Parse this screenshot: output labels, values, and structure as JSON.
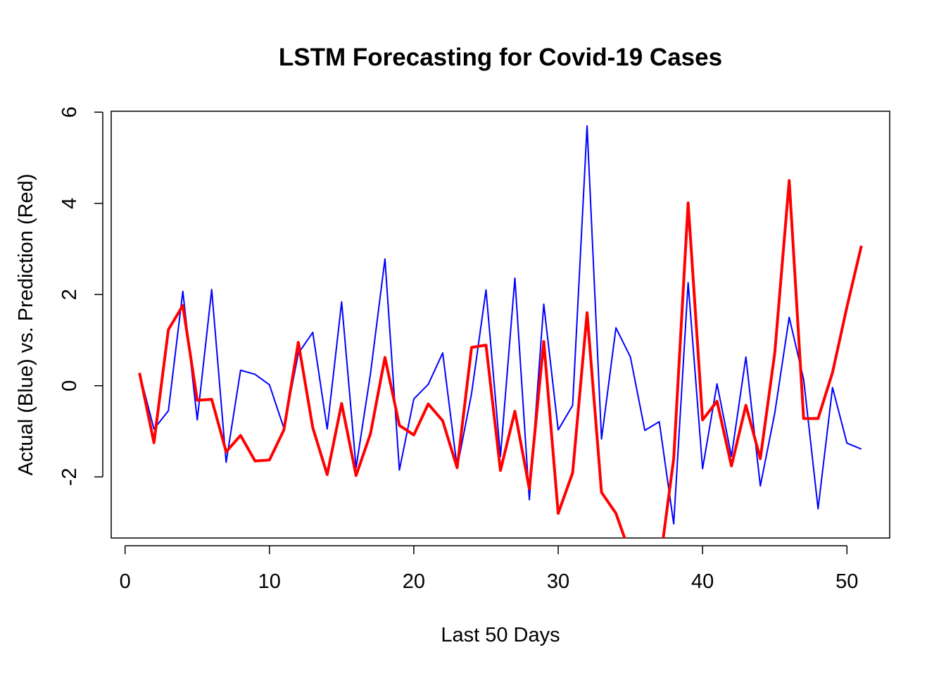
{
  "chart_data": {
    "type": "line",
    "title": "LSTM Forecasting for Covid-19 Cases",
    "xlabel": "Last 50 Days",
    "ylabel": "Actual (Blue) vs. Prediction (Red)",
    "xlim": [
      -0.96,
      52.96
    ],
    "ylim": [
      -3.34,
      6.02
    ],
    "x_ticks": [
      0,
      10,
      20,
      30,
      40,
      50
    ],
    "x_tick_labels": [
      "0",
      "10",
      "20",
      "30",
      "40",
      "50"
    ],
    "y_ticks": [
      -2,
      0,
      2,
      4,
      6
    ],
    "y_tick_labels": [
      "-2",
      "0",
      "2",
      "4",
      "6"
    ],
    "grid": false,
    "legend": "none",
    "x": [
      1,
      2,
      3,
      4,
      5,
      6,
      7,
      8,
      9,
      10,
      11,
      12,
      13,
      14,
      15,
      16,
      17,
      18,
      19,
      20,
      21,
      22,
      23,
      24,
      25,
      26,
      27,
      28,
      29,
      30,
      31,
      32,
      33,
      34,
      35,
      36,
      37,
      38,
      39,
      40,
      41,
      42,
      43,
      44,
      45,
      46,
      47,
      48,
      49,
      50,
      51
    ],
    "series": [
      {
        "color": "#0000ff",
        "line_width": 2,
        "values": [
          0.28,
          -0.95,
          -0.55,
          2.07,
          -0.75,
          2.11,
          -1.68,
          0.34,
          0.25,
          0.02,
          -0.93,
          0.71,
          1.17,
          -0.95,
          1.84,
          -1.8,
          0.27,
          2.78,
          -1.85,
          -0.29,
          0.03,
          0.72,
          -1.8,
          -0.17,
          2.1,
          -1.55,
          2.36,
          -2.5,
          1.79,
          -0.97,
          -0.43,
          5.7,
          -1.17,
          1.27,
          0.63,
          -0.98,
          -0.79,
          -3.03,
          2.26,
          -1.82,
          0.04,
          -1.55,
          0.63,
          -2.2,
          -0.6,
          1.5,
          0.14,
          -2.7,
          -0.04,
          -1.26,
          -1.39
        ]
      },
      {
        "color": "#ff0000",
        "line_width": 4,
        "values": [
          0.28,
          -1.25,
          1.23,
          1.76,
          -0.32,
          -0.3,
          -1.45,
          -1.09,
          -1.65,
          -1.63,
          -0.97,
          0.95,
          -0.92,
          -1.95,
          -0.39,
          -1.97,
          -1.05,
          0.62,
          -0.87,
          -1.08,
          -0.4,
          -0.77,
          -1.8,
          0.84,
          0.89,
          -1.86,
          -0.56,
          -2.26,
          0.97,
          -2.8,
          -1.91,
          1.6,
          -2.34,
          -2.8,
          -3.7,
          -4.1,
          -4.0,
          -1.6,
          4.01,
          -0.75,
          -0.34,
          -1.76,
          -0.43,
          -1.6,
          0.72,
          4.5,
          -0.72,
          -0.72,
          0.29,
          1.73,
          3.07
        ]
      }
    ]
  }
}
